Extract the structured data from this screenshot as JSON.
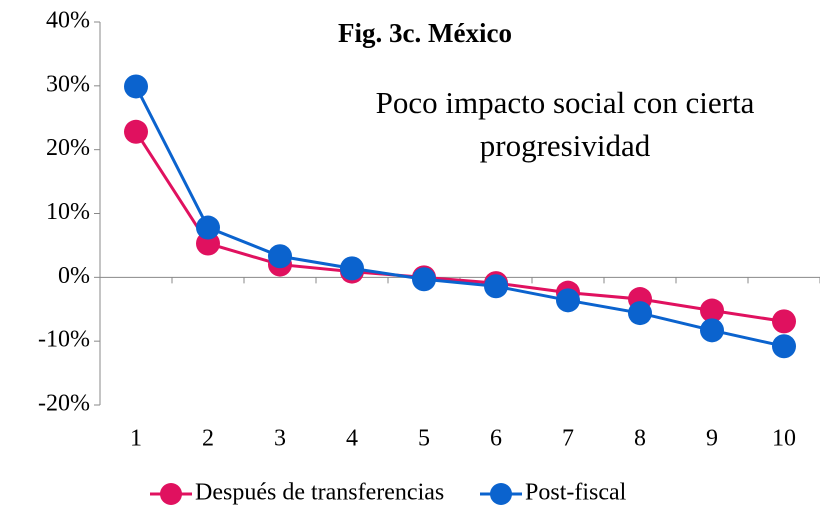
{
  "chart_data": {
    "type": "line",
    "title": "Fig. 3c. México",
    "annotation": [
      "Poco impacto social con cierta",
      "progresividad"
    ],
    "categories": [
      "1",
      "2",
      "3",
      "4",
      "5",
      "6",
      "7",
      "8",
      "9",
      "10"
    ],
    "series": [
      {
        "name": "Después de transferencias",
        "color": "#e0115f",
        "values": [
          22.8,
          5.3,
          2.0,
          0.9,
          0.0,
          -0.9,
          -2.4,
          -3.4,
          -5.2,
          -6.9
        ]
      },
      {
        "name": "Post-fiscal",
        "color": "#0b63ce",
        "values": [
          29.9,
          7.8,
          3.3,
          1.4,
          -0.3,
          -1.4,
          -3.6,
          -5.6,
          -8.3,
          -10.8
        ]
      }
    ],
    "ylim": [
      -20,
      40
    ],
    "yticks": [
      {
        "value": -20,
        "label": "-20%"
      },
      {
        "value": -10,
        "label": "-10%"
      },
      {
        "value": 0,
        "label": "0%"
      },
      {
        "value": 10,
        "label": "10%"
      },
      {
        "value": 20,
        "label": "20%"
      },
      {
        "value": 30,
        "label": "30%"
      },
      {
        "value": 40,
        "label": "40%"
      }
    ],
    "legend": "bottom"
  }
}
